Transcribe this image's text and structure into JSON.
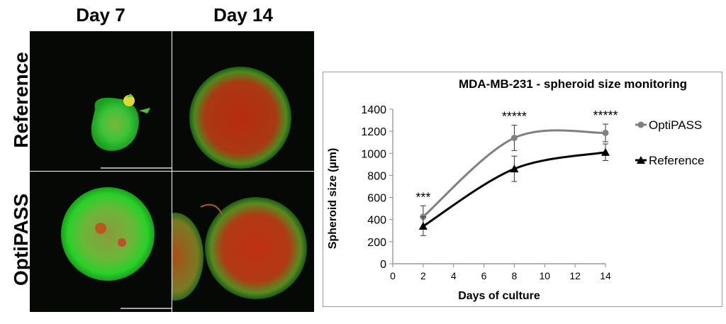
{
  "figure": {
    "columns": [
      "Day 7",
      "Day 14"
    ],
    "rows": [
      "Reference",
      "OptiPASS"
    ]
  },
  "chart_data": {
    "type": "line",
    "title": "MDA-MB-231 - spheroid size monitoring",
    "xlabel": "Days of culture",
    "ylabel": "Spheroid size (µm)",
    "xlim": [
      0,
      14
    ],
    "ylim": [
      0,
      1400
    ],
    "xticks": [
      "0",
      "2",
      "4",
      "6",
      "8",
      "10",
      "12",
      "14"
    ],
    "yticks": [
      "0",
      "200",
      "400",
      "600",
      "800",
      "1000",
      "1200",
      "1400"
    ],
    "legend_position": "right",
    "series": [
      {
        "name": "OptiPASS",
        "color": "#808080",
        "marker": "circle",
        "x": [
          2,
          8,
          14
        ],
        "y": [
          425,
          1140,
          1185
        ],
        "error": [
          100,
          115,
          80
        ]
      },
      {
        "name": "Reference",
        "color": "#000000",
        "marker": "triangle",
        "x": [
          2,
          8,
          14
        ],
        "y": [
          340,
          860,
          1010
        ],
        "error": [
          85,
          115,
          75
        ]
      }
    ],
    "annotations": [
      {
        "x": 2,
        "text": "***"
      },
      {
        "x": 8,
        "text": "*****"
      },
      {
        "x": 14,
        "text": "*****"
      }
    ]
  }
}
